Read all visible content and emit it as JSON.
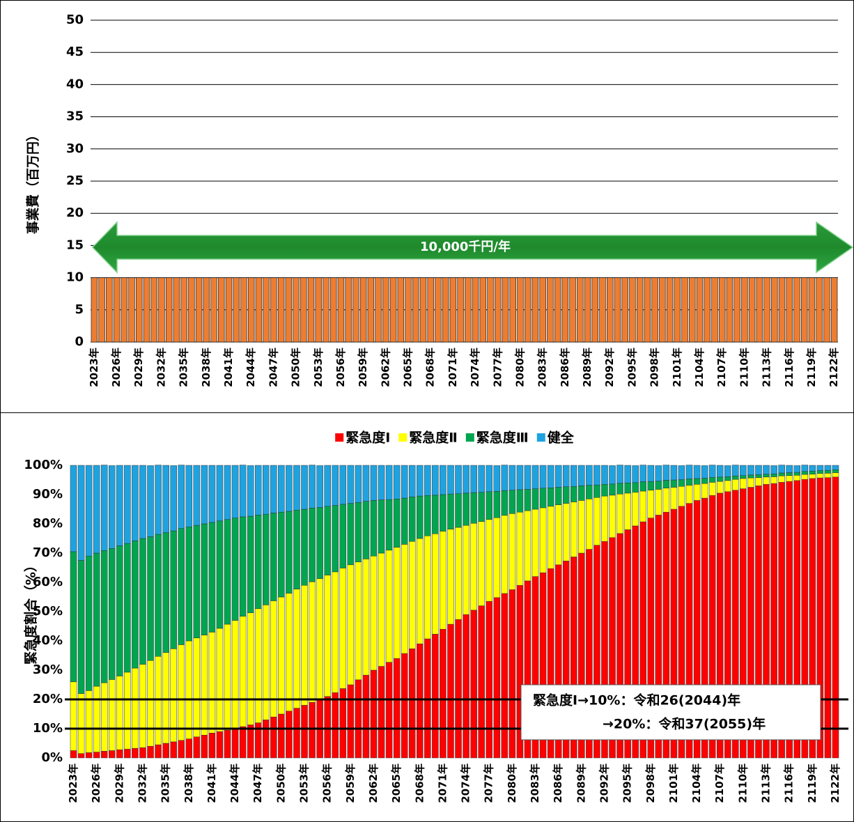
{
  "chart_data": [
    {
      "type": "bar",
      "y_label": "事業費（百万円）",
      "annotation": "10,000千円/年",
      "categories": [
        "2023年",
        null,
        null,
        "2026年",
        null,
        null,
        "2029年",
        null,
        null,
        "2032年",
        null,
        null,
        "2035年",
        null,
        null,
        "2038年",
        null,
        null,
        "2041年",
        null,
        null,
        "2044年",
        null,
        null,
        "2047年",
        null,
        null,
        "2050年",
        null,
        null,
        "2053年",
        null,
        null,
        "2056年",
        null,
        null,
        "2059年",
        null,
        null,
        "2062年",
        null,
        null,
        "2065年",
        null,
        null,
        "2068年",
        null,
        null,
        "2071年",
        null,
        null,
        "2074年",
        null,
        null,
        "2077年",
        null,
        null,
        "2080年",
        null,
        null,
        "2083年",
        null,
        null,
        "2086年",
        null,
        null,
        "2089年",
        null,
        null,
        "2092年",
        null,
        null,
        "2095年",
        null,
        null,
        "2098年",
        null,
        null,
        "2101年",
        null,
        null,
        "2104年",
        null,
        null,
        "2107年",
        null,
        null,
        "2110年",
        null,
        null,
        "2113年",
        null,
        null,
        "2116年",
        null,
        null,
        "2119年",
        null,
        null,
        "2122年"
      ],
      "values": [
        10,
        10,
        10,
        10,
        10,
        10,
        10,
        10,
        10,
        10,
        10,
        10,
        10,
        10,
        10,
        10,
        10,
        10,
        10,
        10,
        10,
        10,
        10,
        10,
        10,
        10,
        10,
        10,
        10,
        10,
        10,
        10,
        10,
        10,
        10,
        10,
        10,
        10,
        10,
        10,
        10,
        10,
        10,
        10,
        10,
        10,
        10,
        10,
        10,
        10,
        10,
        10,
        10,
        10,
        10,
        10,
        10,
        10,
        10,
        10,
        10,
        10,
        10,
        10,
        10,
        10,
        10,
        10,
        10,
        10,
        10,
        10,
        10,
        10,
        10,
        10,
        10,
        10,
        10,
        10,
        10,
        10,
        10,
        10,
        10,
        10,
        10,
        10,
        10,
        10,
        10,
        10,
        10,
        10,
        10,
        10,
        10,
        10,
        10,
        10
      ],
      "color": "#ed7d31",
      "ylim": [
        0,
        50
      ],
      "yticks": [
        0,
        5,
        10,
        15,
        20,
        25,
        30,
        35,
        40,
        45,
        50
      ],
      "grid": true
    },
    {
      "type": "stacked_bar",
      "y_label": "緊急度割合（%）",
      "legend": "top",
      "annotations": [
        "緊急度Ⅰ→10%：令和26(2044)年",
        "→20%：令和37(2055)年"
      ],
      "reference_lines": [
        10,
        20
      ],
      "categories": [
        "2023年",
        null,
        null,
        "2026年",
        null,
        null,
        "2029年",
        null,
        null,
        "2032年",
        null,
        null,
        "2035年",
        null,
        null,
        "2038年",
        null,
        null,
        "2041年",
        null,
        null,
        "2044年",
        null,
        null,
        "2047年",
        null,
        null,
        "2050年",
        null,
        null,
        "2053年",
        null,
        null,
        "2056年",
        null,
        null,
        "2059年",
        null,
        null,
        "2062年",
        null,
        null,
        "2065年",
        null,
        null,
        "2068年",
        null,
        null,
        "2071年",
        null,
        null,
        "2074年",
        null,
        null,
        "2077年",
        null,
        null,
        "2080年",
        null,
        null,
        "2083年",
        null,
        null,
        "2086年",
        null,
        null,
        "2089年",
        null,
        null,
        "2092年",
        null,
        null,
        "2095年",
        null,
        null,
        "2098年",
        null,
        null,
        "2101年",
        null,
        null,
        "2104年",
        null,
        null,
        "2107年",
        null,
        null,
        "2110年",
        null,
        null,
        "2113年",
        null,
        null,
        "2116年",
        null,
        null,
        "2119年",
        null,
        null,
        "2122年"
      ],
      "series": [
        {
          "name": "緊急度Ⅰ",
          "color": "#ff0000",
          "values": [
            2.5,
            1.5,
            1.8,
            2,
            2.3,
            2.5,
            2.8,
            3,
            3.3,
            3.5,
            4,
            4.5,
            5,
            5.5,
            6,
            6.5,
            7.2,
            7.8,
            8.5,
            9,
            9.5,
            10,
            10.7,
            11.3,
            12,
            13,
            14,
            15,
            16,
            17,
            18,
            19,
            20,
            21,
            22.3,
            23.7,
            25,
            26.7,
            28.3,
            30,
            31.3,
            32.7,
            34,
            35.7,
            37.3,
            39,
            40.7,
            42.3,
            44,
            45.7,
            47.3,
            49,
            50.5,
            52,
            53.5,
            54.8,
            56.2,
            57.5,
            59,
            60.5,
            62,
            63.3,
            64.7,
            66,
            67.3,
            68.7,
            70,
            71.3,
            72.7,
            74,
            75.3,
            76.7,
            78,
            79.3,
            80.7,
            82,
            83,
            84,
            85,
            86,
            87,
            88,
            88.8,
            89.7,
            90.5,
            91,
            91.5,
            92,
            92.5,
            93,
            93.5,
            93.8,
            94.2,
            94.5,
            94.8,
            95.2,
            95.5,
            95.7,
            95.8,
            96
          ]
        },
        {
          "name": "緊急度Ⅱ",
          "color": "#ffff00",
          "values": [
            23.5,
            20.5,
            21.2,
            22.5,
            23.4,
            24.3,
            25.2,
            26.3,
            27.4,
            28.5,
            29.3,
            30.2,
            31,
            31.8,
            32.7,
            33.5,
            33.8,
            34.2,
            34.5,
            35.3,
            36.2,
            37,
            37.7,
            38.3,
            39,
            39.3,
            39.7,
            40,
            40.3,
            40.7,
            41,
            41.2,
            41.3,
            41.5,
            41.3,
            41.2,
            41,
            40.3,
            39.7,
            39,
            38.7,
            38.3,
            38,
            37.3,
            36.7,
            36,
            35.2,
            34.3,
            33.5,
            32.5,
            31.5,
            30.5,
            29.7,
            28.8,
            28,
            27.3,
            26.7,
            26,
            25,
            24,
            23,
            22.2,
            21.3,
            20.5,
            19.7,
            18.8,
            18,
            17.2,
            16.3,
            15.5,
            14.5,
            13.5,
            12.5,
            11.5,
            10.5,
            9.5,
            8.8,
            8.2,
            7.5,
            6.8,
            6.2,
            5.5,
            5,
            4.5,
            4,
            3.8,
            3.7,
            3.5,
            3.2,
            2.8,
            2.5,
            2.3,
            2.2,
            2,
            1.8,
            1.7,
            1.5,
            1.5,
            1.5,
            1.5
          ]
        },
        {
          "name": "緊急度Ⅲ",
          "color": "#00a550",
          "values": [
            44.5,
            45.5,
            46,
            45.5,
            45.2,
            44.8,
            44.5,
            44,
            43.5,
            43,
            42.3,
            41.7,
            41,
            40.3,
            39.7,
            39,
            38.5,
            38,
            37.5,
            36.7,
            35.8,
            35,
            34,
            33,
            32,
            31,
            30,
            29,
            28,
            27,
            26,
            25.2,
            24.3,
            23.5,
            22.7,
            21.8,
            21,
            20.3,
            19.7,
            19,
            18.2,
            17.3,
            16.5,
            15.8,
            15.2,
            14.5,
            13.8,
            13.2,
            12.5,
            12,
            11.5,
            11,
            10.5,
            10,
            9.5,
            9,
            8.5,
            8,
            7.7,
            7.3,
            7,
            6.7,
            6.3,
            6,
            5.7,
            5.3,
            5,
            4.7,
            4.3,
            4,
            3.8,
            3.7,
            3.5,
            3.3,
            3.2,
            3,
            2.8,
            2.7,
            2.5,
            2.3,
            2.2,
            2,
            1.8,
            1.7,
            1.5,
            1.3,
            1.2,
            1,
            1,
            1,
            1,
            1,
            1,
            1,
            1,
            1,
            1,
            1,
            1,
            1
          ]
        },
        {
          "name": "健全",
          "color": "#1fa3e0",
          "values": [
            29.5,
            32.5,
            31,
            30,
            29.2,
            28.3,
            27.5,
            26.7,
            25.8,
            25,
            24.3,
            23.7,
            23,
            22.3,
            21.7,
            21,
            20.5,
            20,
            19.5,
            19,
            18.5,
            18,
            17.7,
            17.3,
            17,
            16.7,
            16.3,
            16,
            15.7,
            15.3,
            15,
            14.7,
            14.3,
            14,
            13.7,
            13.3,
            13,
            12.7,
            12.3,
            12,
            11.8,
            11.7,
            11.5,
            11.2,
            10.8,
            10.5,
            10.3,
            10.2,
            10,
            9.8,
            9.7,
            9.5,
            9.3,
            9.2,
            9,
            8.8,
            8.7,
            8.5,
            8.3,
            8.2,
            8,
            7.8,
            7.7,
            7.5,
            7.3,
            7.2,
            7,
            6.8,
            6.7,
            6.5,
            6.3,
            6.2,
            6,
            5.8,
            5.7,
            5.5,
            5.3,
            5.2,
            5,
            4.8,
            4.7,
            4.5,
            4.3,
            4.2,
            4,
            3.8,
            3.7,
            3.5,
            3.3,
            3.2,
            3,
            2.8,
            2.7,
            2.5,
            2.3,
            2.2,
            2,
            1.8,
            1.7,
            1.5
          ]
        }
      ],
      "ylim": [
        0,
        100
      ],
      "yticks": [
        {
          "value": 0,
          "label": "0%"
        },
        {
          "value": 10,
          "label": "10%"
        },
        {
          "value": 20,
          "label": "20%"
        },
        {
          "value": 30,
          "label": "30%"
        },
        {
          "value": 40,
          "label": "40%"
        },
        {
          "value": 50,
          "label": "50%"
        },
        {
          "value": 60,
          "label": "60%"
        },
        {
          "value": 70,
          "label": "70%"
        },
        {
          "value": 80,
          "label": "80%"
        },
        {
          "value": 90,
          "label": "90%"
        },
        {
          "value": 100,
          "label": "100%"
        }
      ],
      "grid": false
    }
  ]
}
